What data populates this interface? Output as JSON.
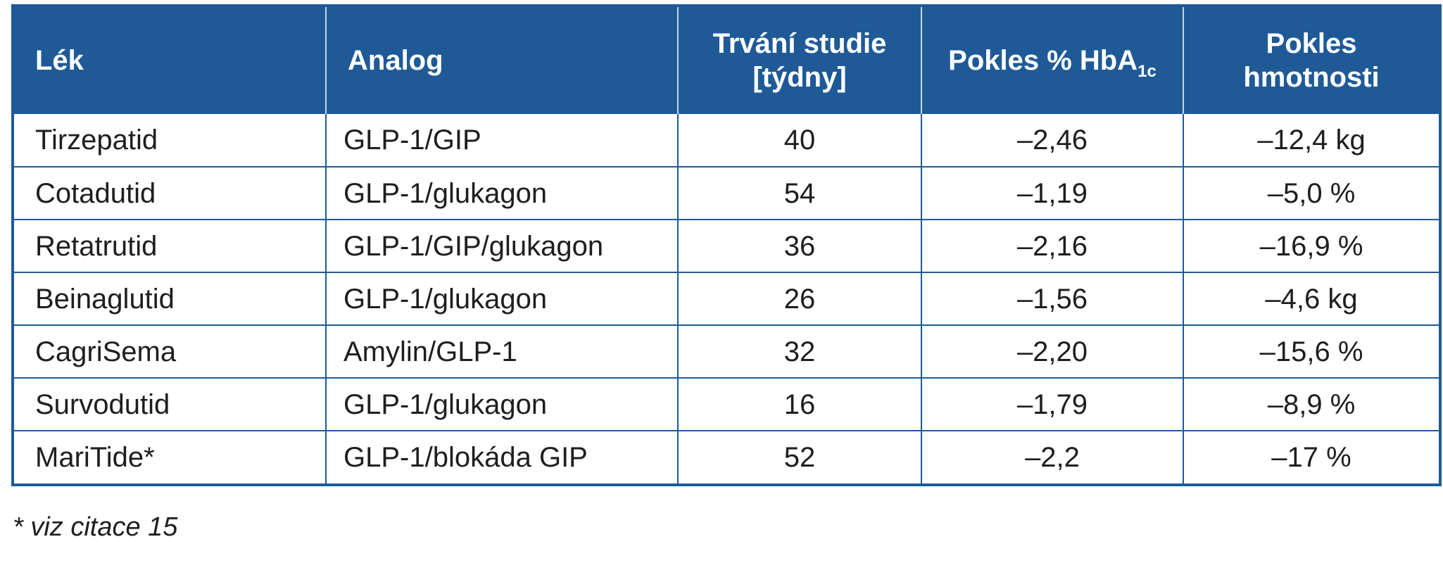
{
  "table": {
    "headers": {
      "drug": "Lék",
      "analog": "Analog",
      "duration_line1": "Trvání studie",
      "duration_line2": "[týdny]",
      "hba1c_main": "Pokles % HbA",
      "hba1c_sub": "1c",
      "weight_line1": "Pokles",
      "weight_line2": "hmotnosti"
    },
    "rows": [
      {
        "drug": "Tirzepatid",
        "analog": "GLP-1/GIP",
        "duration": "40",
        "hba1c": "–2,46",
        "weight": "–12,4 kg"
      },
      {
        "drug": "Cotadutid",
        "analog": "GLP-1/glukagon",
        "duration": "54",
        "hba1c": "–1,19",
        "weight": "–5,0 %"
      },
      {
        "drug": "Retatrutid",
        "analog": "GLP-1/GIP/glukagon",
        "duration": "36",
        "hba1c": "–2,16",
        "weight": "–16,9 %"
      },
      {
        "drug": "Beinaglutid",
        "analog": "GLP-1/glukagon",
        "duration": "26",
        "hba1c": "–1,56",
        "weight": "–4,6 kg"
      },
      {
        "drug": "CagriSema",
        "analog": "Amylin/GLP-1",
        "duration": "32",
        "hba1c": "–2,20",
        "weight": "–15,6 %"
      },
      {
        "drug": "Survodutid",
        "analog": "GLP-1/glukagon",
        "duration": "16",
        "hba1c": "–1,79",
        "weight": "–8,9 %"
      },
      {
        "drug": "MariTide*",
        "analog": "GLP-1/blokáda GIP",
        "duration": "52",
        "hba1c": "–2,2",
        "weight": "–17 %"
      }
    ]
  },
  "footnote": "* viz citace 15",
  "colors": {
    "header_background": "#1f5a97",
    "header_text": "#ffffff",
    "border": "#1f5a97"
  }
}
